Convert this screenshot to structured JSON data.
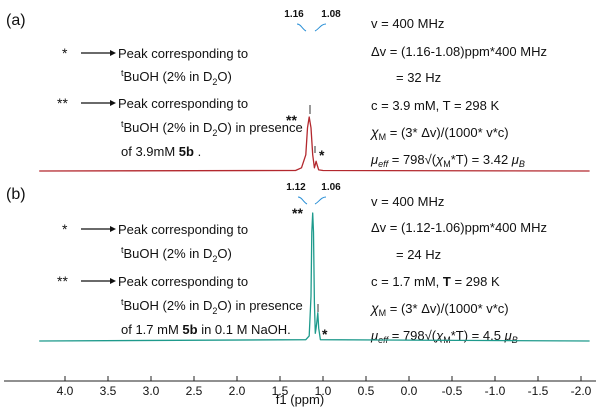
{
  "chart_data": {
    "type": "line",
    "xlabel": "f1 (ppm)",
    "xlim": [
      4.3,
      -2.1
    ],
    "x_axis_reversed": true,
    "x_ticks": [
      "4.0",
      "3.5",
      "3.0",
      "2.5",
      "2.0",
      "1.5",
      "1.0",
      "0.5",
      "0.0",
      "-0.5",
      "-1.0",
      "-1.5",
      "-2.0"
    ],
    "x_tick_values": [
      4.0,
      3.5,
      3.0,
      2.5,
      2.0,
      1.5,
      1.0,
      0.5,
      0.0,
      -0.5,
      -1.0,
      -1.5,
      -2.0
    ],
    "panels": [
      {
        "label": "(a)",
        "color": "#b3282e",
        "series": [
          {
            "x": [
              4.3,
              1.32,
              1.25,
              1.2,
              1.18,
              1.16,
              1.14,
              1.12,
              1.1,
              1.09,
              1.08,
              1.07,
              1.05,
              1.0,
              -2.1
            ],
            "y": [
              0,
              0.01,
              0.06,
              0.3,
              0.8,
              1.0,
              0.8,
              0.3,
              0.06,
              0.12,
              0.18,
              0.12,
              0.02,
              0.01,
              0
            ]
          }
        ],
        "peak_labels": [
          "1.16",
          "1.08"
        ],
        "peak_label_values": [
          1.16,
          1.08
        ],
        "peak_markers": [
          {
            "text": "**",
            "x": 1.16
          },
          {
            "text": "*",
            "x": 1.08
          }
        ],
        "legend": [
          {
            "marker": "*",
            "line1": "Peak corresponding to",
            "line2_prefix": "t",
            "line2": "BuOH (2% in D",
            "line2_sub": "2",
            "line2_suffix": "O)"
          },
          {
            "marker": "**",
            "line1": "Peak corresponding to",
            "line2_prefix": "t",
            "line2": "BuOH (2% in D",
            "line2_sub": "2",
            "line2_suffix": "O) in presence",
            "line3": "of 3.9mM ",
            "line3_bold": "5b",
            "line3_suffix": " ."
          }
        ],
        "annotations": {
          "freq": "v = 400 MHz",
          "delta_nu": "Δv = (1.16-1.08)ppm*400 MHz",
          "delta_result": "= 32 Hz",
          "conditions": "c = 3.9 mM, T = 298 K",
          "chi_sym": "χ",
          "chi_sub": "M",
          "chi_formula": " = (3* Δv)/(1000* v*c)",
          "mu_sym": "μ",
          "mu_sub": "eff",
          "mu_formula_a": " = 798√(",
          "mu_formula_b": "*T) = 3.42 ",
          "mu_unit_sym": "μ",
          "mu_unit_sub": "B"
        }
      },
      {
        "label": "(b)",
        "color": "#1e9a8c",
        "series": [
          {
            "x": [
              4.3,
              1.2,
              1.16,
              1.14,
              1.13,
              1.12,
              1.11,
              1.1,
              1.09,
              1.08,
              1.07,
              1.06,
              1.05,
              1.03,
              -2.1
            ],
            "y": [
              0,
              0.01,
              0.04,
              0.35,
              0.85,
              1.0,
              0.85,
              0.3,
              0.06,
              0.1,
              0.16,
              0.22,
              0.1,
              0.01,
              0
            ]
          }
        ],
        "peak_labels": [
          "1.12",
          "1.06"
        ],
        "peak_label_values": [
          1.12,
          1.06
        ],
        "peak_markers": [
          {
            "text": "**",
            "x": 1.12
          },
          {
            "text": "*",
            "x": 1.06
          }
        ],
        "legend": [
          {
            "marker": "*",
            "line1": "Peak corresponding to",
            "line2_prefix": "t",
            "line2": "BuOH (2% in D",
            "line2_sub": "2",
            "line2_suffix": "O)"
          },
          {
            "marker": "**",
            "line1": "Peak corresponding to",
            "line2_prefix": "t",
            "line2": "BuOH (2% in D",
            "line2_sub": "2",
            "line2_suffix": "O) in presence",
            "line3": "of 1.7 mM ",
            "line3_bold": "5b",
            "line3_suffix": " in 0.1 M NaOH."
          }
        ],
        "annotations": {
          "freq": "v = 400 MHz",
          "delta_nu": "Δv = (1.12-1.06)ppm*400 MHz",
          "delta_result": "= 24 Hz",
          "conditions_a": "c = 1.7 mM, ",
          "conditions_b": "T",
          "conditions_c": " = 298 K",
          "chi_sym": "χ",
          "chi_sub": "M",
          "chi_formula": " = (3* Δv)/(1000* v*c)",
          "mu_sym": "μ",
          "mu_sub": "eff",
          "mu_formula_a": " = 798√(",
          "mu_formula_b": "*T) = 4.5 ",
          "mu_unit_sym": "μ",
          "mu_unit_sub": "B"
        }
      }
    ]
  }
}
